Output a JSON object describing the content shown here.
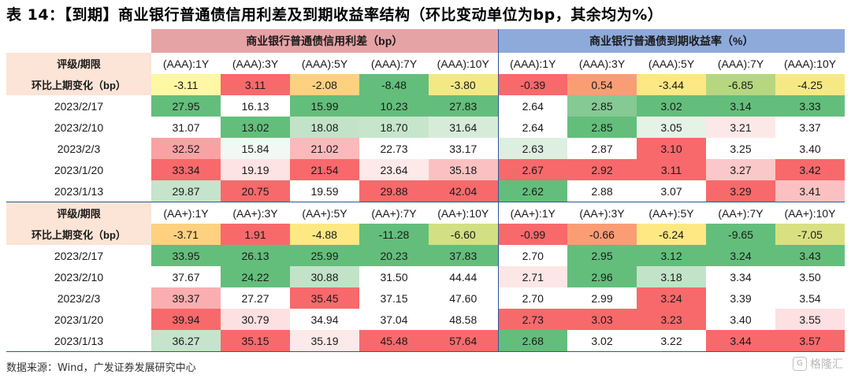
{
  "title": "表 14：【到期】商业银行普通债信用利差及到期收益率结构（环比变动单位为bp，其余均为%）",
  "header": {
    "spread_group": "商业银行普通债信用利差（bp）",
    "yield_group": "商业银行普通债到期收益率（%）"
  },
  "colors": {
    "spread_header_bg": "#e6a3a6",
    "yield_header_bg": "#8eaadb",
    "label_bg": "#fce4d6",
    "separator": "#2f5597"
  },
  "sections": [
    {
      "rating_label": "评级/期限",
      "change_label": "环比上期变化（bp）",
      "columns": [
        "(AAA):1Y",
        "(AAA):3Y",
        "(AAA):5Y",
        "(AAA):7Y",
        "(AAA):10Y",
        "(AAA):1Y",
        "(AAA):3Y",
        "(AAA):5Y",
        "(AAA):7Y",
        "(AAA):10Y"
      ],
      "change": {
        "values": [
          "-3.11",
          "3.11",
          "-2.08",
          "-8.48",
          "-3.80",
          "-0.39",
          "0.54",
          "-3.44",
          "-6.85",
          "-4.25"
        ],
        "colors": [
          "#fef7a3",
          "#f8696b",
          "#fdd17f",
          "#63be7b",
          "#f3e884",
          "#f8696b",
          "#fa9d75",
          "#fee883",
          "#b6d780",
          "#f6e984"
        ]
      },
      "rows": [
        {
          "date": "2023/2/17",
          "values": [
            "27.95",
            "16.13",
            "15.99",
            "10.23",
            "27.83",
            "2.64",
            "2.85",
            "3.02",
            "3.14",
            "3.33"
          ],
          "colors": [
            "#63be7b",
            "#ffffff",
            "#63be7b",
            "#63be7b",
            "#63be7b",
            "#ffffff",
            "#85c995",
            "#63be7b",
            "#63be7b",
            "#63be7b"
          ]
        },
        {
          "date": "2023/2/10",
          "values": [
            "31.07",
            "13.02",
            "18.08",
            "18.70",
            "31.64",
            "2.64",
            "2.85",
            "3.05",
            "3.21",
            "3.37"
          ],
          "colors": [
            "#ffffff",
            "#63be7b",
            "#c2e3c8",
            "#c6e5cb",
            "#d6ecd9",
            "#ffffff",
            "#63be7b",
            "#e5f3e7",
            "#fde8e8",
            "#ffffff"
          ]
        },
        {
          "date": "2023/2/3",
          "values": [
            "32.52",
            "15.84",
            "21.02",
            "22.73",
            "33.17",
            "2.63",
            "2.87",
            "3.10",
            "3.25",
            "3.40"
          ],
          "colors": [
            "#f9a2a4",
            "#f2f8f3",
            "#fbb9bb",
            "#ffffff",
            "#ffffff",
            "#dcefe0",
            "#ffffff",
            "#f8696b",
            "#ffffff",
            "#ffffff"
          ]
        },
        {
          "date": "2023/1/20",
          "values": [
            "33.34",
            "19.19",
            "21.54",
            "23.64",
            "35.18"
          ],
          "colors": [
            "#f8696b",
            "#fde3e4",
            "#f8696b",
            "#fde9ea",
            "#fbc1c2",
            "#f8696b",
            "#f8696b",
            "#f8696b",
            "#fbc8c9",
            "#f8696b"
          ],
          "values_y": [
            "2.67",
            "2.92",
            "3.11",
            "3.27",
            "3.42"
          ]
        },
        {
          "date": "2023/1/13",
          "values": [
            "29.87",
            "20.75",
            "19.59",
            "29.88",
            "42.04"
          ],
          "colors": [
            "#c5e4cb",
            "#f8696b",
            "#ffffff",
            "#f8696b",
            "#f8696b",
            "#63be7b",
            "#ffffff",
            "#ffffff",
            "#f8696b",
            "#fbc1c2"
          ],
          "values_y": [
            "2.62",
            "2.88",
            "3.07",
            "3.29",
            "3.41"
          ]
        }
      ]
    },
    {
      "rating_label": "评级/期限",
      "change_label": "环比上期变化（bp）",
      "columns": [
        "(AA+):1Y",
        "(AA+):3Y",
        "(AA+):5Y",
        "(AA+):7Y",
        "(AA+):10Y",
        "(AA+):1Y",
        "(AA+):3Y",
        "(AA+):5Y",
        "(AA+):7Y",
        "(AA+):10Y"
      ],
      "change": {
        "values": [
          "-3.71",
          "1.91",
          "-4.88",
          "-11.28",
          "-6.60",
          "-0.99",
          "-0.66",
          "-6.24",
          "-9.65",
          "-7.05"
        ],
        "colors": [
          "#fdd17f",
          "#f8696b",
          "#fee883",
          "#63be7b",
          "#d2df82",
          "#f8696b",
          "#fa9d75",
          "#fee883",
          "#63be7b",
          "#d9e082"
        ]
      },
      "rows": [
        {
          "date": "2023/2/17",
          "values": [
            "33.95",
            "26.13",
            "25.99",
            "20.23",
            "37.83",
            "2.70",
            "2.95",
            "3.12",
            "3.24",
            "3.43"
          ],
          "colors": [
            "#63be7b",
            "#63be7b",
            "#63be7b",
            "#63be7b",
            "#63be7b",
            "#ffffff",
            "#63be7b",
            "#63be7b",
            "#63be7b",
            "#63be7b"
          ]
        },
        {
          "date": "2023/2/10",
          "values": [
            "37.67",
            "24.22",
            "30.88",
            "31.50",
            "44.44",
            "2.71",
            "2.96",
            "3.18",
            "3.34",
            "3.50"
          ],
          "colors": [
            "#ffffff",
            "#63be7b",
            "#c2e3c8",
            "#ffffff",
            "#ffffff",
            "#fde6e6",
            "#63be7b",
            "#c2e3c8",
            "#ffffff",
            "#ffffff"
          ]
        },
        {
          "date": "2023/2/3",
          "values": [
            "39.37",
            "27.27",
            "35.45",
            "37.15",
            "47.60",
            "2.70",
            "2.99",
            "3.24",
            "3.39",
            "3.54"
          ],
          "colors": [
            "#fbaeb0",
            "#ffffff",
            "#f8696b",
            "#ffffff",
            "#ffffff",
            "#ffffff",
            "#ffffff",
            "#f8696b",
            "#ffffff",
            "#ffffff"
          ]
        },
        {
          "date": "2023/1/20",
          "values": [
            "39.94",
            "30.79",
            "34.94",
            "37.04",
            "48.58"
          ],
          "colors": [
            "#f8696b",
            "#fde0e1",
            "#ffffff",
            "#ffffff",
            "#ffffff",
            "#f8696b",
            "#f8696b",
            "#f8696b",
            "#ffffff",
            "#fde0e1"
          ],
          "values_y": [
            "2.73",
            "3.03",
            "3.23",
            "3.40",
            "3.55"
          ]
        },
        {
          "date": "2023/1/13",
          "values": [
            "36.27",
            "35.15",
            "35.19",
            "45.48",
            "57.64"
          ],
          "colors": [
            "#c5e4cb",
            "#f8696b",
            "#fde9ea",
            "#f8696b",
            "#f8696b",
            "#63be7b",
            "#ffffff",
            "#ffffff",
            "#f8696b",
            "#f8696b"
          ],
          "values_y": [
            "2.68",
            "3.02",
            "3.22",
            "3.44",
            "3.57"
          ]
        }
      ]
    }
  ],
  "source": "数据来源：Wind，广发证券发展研究中心",
  "watermark": "格隆汇"
}
